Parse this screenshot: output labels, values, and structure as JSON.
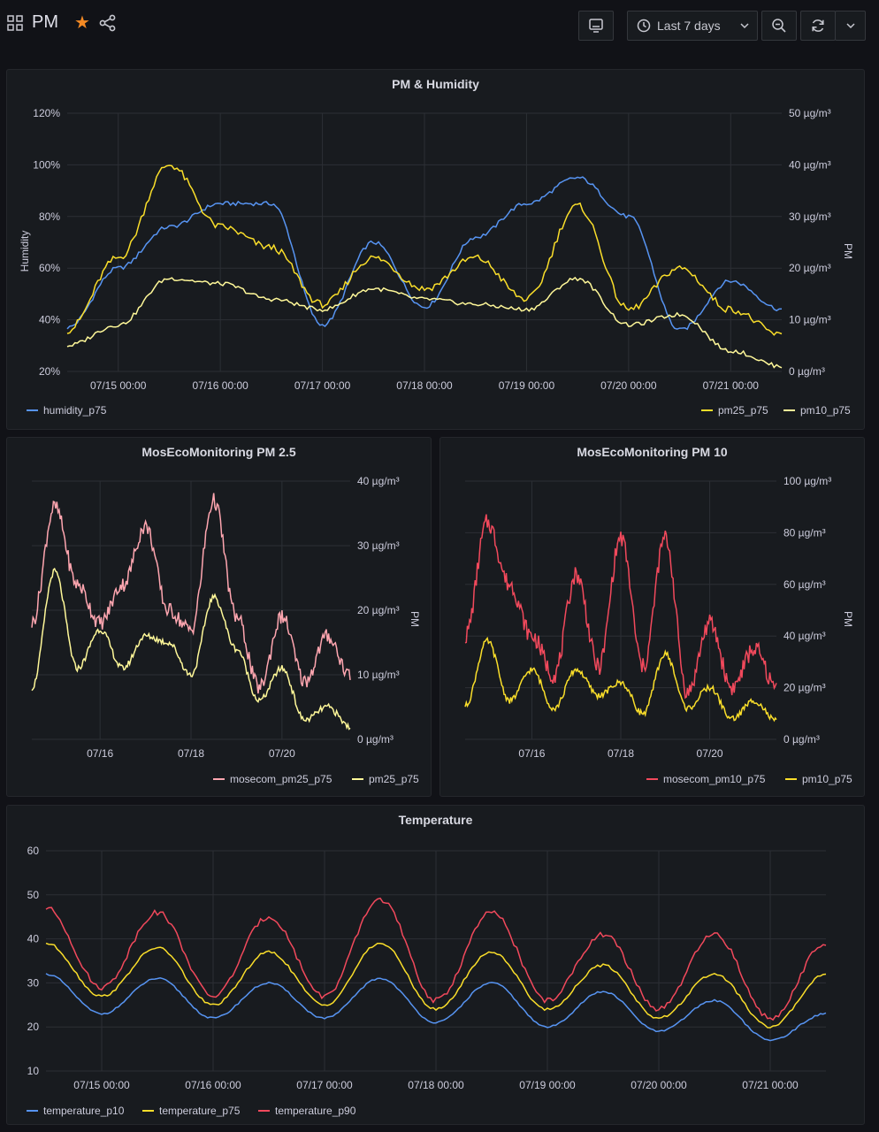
{
  "header": {
    "title": "PM",
    "time_range": "Last 7 days"
  },
  "colors": {
    "blue": "#5794f2",
    "yellow": "#fade2a",
    "light_yellow": "#fff899",
    "pink": "#ffa6b0",
    "red": "#f2495c",
    "star": "#f58a24"
  },
  "icons": [
    "apps-icon",
    "star-icon",
    "share-icon",
    "tv-icon",
    "clock-icon",
    "chevron-down-icon",
    "zoom-out-icon",
    "refresh-icon"
  ],
  "panels": {
    "pm_humidity": {
      "title": "PM & Humidity",
      "y_left_label": "Humidity",
      "y_right_label": "PM",
      "y_left_ticks": [
        "120%",
        "100%",
        "80%",
        "60%",
        "40%",
        "20%"
      ],
      "y_right_ticks": [
        "50 µg/m³",
        "40 µg/m³",
        "30 µg/m³",
        "20 µg/m³",
        "10 µg/m³",
        "0 µg/m³"
      ],
      "x_ticks": [
        "07/15 00:00",
        "07/16 00:00",
        "07/17 00:00",
        "07/18 00:00",
        "07/19 00:00",
        "07/20 00:00",
        "07/21 00:00"
      ],
      "legend_left": "humidity_p75",
      "legend_right_1": "pm25_p75",
      "legend_right_2": "pm10_p75"
    },
    "pm25": {
      "title": "MosEcoMonitoring PM 2.5",
      "y_right_label": "PM",
      "y_ticks": [
        "40 µg/m³",
        "30 µg/m³",
        "20 µg/m³",
        "10 µg/m³",
        "0 µg/m³"
      ],
      "x_ticks": [
        "07/16",
        "07/18",
        "07/20"
      ],
      "legend_1": "mosecom_pm25_p75",
      "legend_2": "pm25_p75"
    },
    "pm10": {
      "title": "MosEcoMonitoring PM 10",
      "y_right_label": "PM",
      "y_ticks": [
        "100 µg/m³",
        "80 µg/m³",
        "60 µg/m³",
        "40 µg/m³",
        "20 µg/m³",
        "0 µg/m³"
      ],
      "x_ticks": [
        "07/16",
        "07/18",
        "07/20"
      ],
      "legend_1": "mosecom_pm10_p75",
      "legend_2": "pm10_p75"
    },
    "temperature": {
      "title": "Temperature",
      "y_ticks": [
        "60",
        "50",
        "40",
        "30",
        "20",
        "10"
      ],
      "x_ticks": [
        "07/15 00:00",
        "07/16 00:00",
        "07/17 00:00",
        "07/18 00:00",
        "07/19 00:00",
        "07/20 00:00",
        "07/21 00:00"
      ],
      "legend_1": "temperature_p10",
      "legend_2": "temperature_p75",
      "legend_3": "temperature_p90"
    }
  },
  "chart_data": [
    {
      "type": "line",
      "title": "PM & Humidity",
      "x": [
        "07/14 12:00",
        "07/15 00:00",
        "07/15 12:00",
        "07/16 00:00",
        "07/16 12:00",
        "07/17 00:00",
        "07/17 12:00",
        "07/18 00:00",
        "07/18 12:00",
        "07/19 00:00",
        "07/19 12:00",
        "07/20 00:00",
        "07/20 12:00",
        "07/21 00:00",
        "07/21 12:00"
      ],
      "y_left_range": [
        20,
        120
      ],
      "y_right_range": [
        0,
        50
      ],
      "series": [
        {
          "name": "humidity_p75",
          "axis": "left",
          "values": [
            37,
            60,
            76,
            85,
            85,
            38,
            70,
            45,
            72,
            85,
            95,
            80,
            36,
            55,
            44
          ]
        },
        {
          "name": "pm25_p75",
          "axis": "right",
          "values": [
            8,
            22,
            40,
            28,
            24,
            13,
            22,
            16,
            22,
            14,
            32,
            12,
            20,
            12,
            7
          ]
        },
        {
          "name": "pm10_p75",
          "axis": "right",
          "values": [
            5,
            9,
            18,
            17,
            14,
            12,
            16,
            14,
            13,
            12,
            18,
            9,
            11,
            4,
            1
          ]
        }
      ]
    },
    {
      "type": "line",
      "title": "MosEcoMonitoring PM 2.5",
      "x": [
        "07/14 12:00",
        "07/15 00:00",
        "07/15 12:00",
        "07/16 00:00",
        "07/16 12:00",
        "07/17 00:00",
        "07/17 12:00",
        "07/18 00:00",
        "07/18 12:00",
        "07/19 00:00",
        "07/19 12:00",
        "07/20 00:00",
        "07/20 12:00",
        "07/21 00:00",
        "07/21 12:00"
      ],
      "y_range": [
        0,
        40
      ],
      "series": [
        {
          "name": "mosecom_pm25_p75",
          "values": [
            18,
            36,
            24,
            18,
            24,
            33,
            20,
            17,
            37,
            19,
            8,
            19,
            9,
            16,
            10
          ]
        },
        {
          "name": "pm25_p75",
          "values": [
            8,
            26,
            11,
            17,
            11,
            16,
            15,
            10,
            22,
            14,
            6,
            11,
            3,
            5,
            2
          ]
        }
      ]
    },
    {
      "type": "line",
      "title": "MosEcoMonitoring PM 10",
      "x": [
        "07/14 12:00",
        "07/15 00:00",
        "07/15 12:00",
        "07/16 00:00",
        "07/16 12:00",
        "07/17 00:00",
        "07/17 12:00",
        "07/18 00:00",
        "07/18 12:00",
        "07/19 00:00",
        "07/19 12:00",
        "07/20 00:00",
        "07/20 12:00",
        "07/21 00:00",
        "07/21 12:00"
      ],
      "y_range": [
        0,
        100
      ],
      "series": [
        {
          "name": "mosecom_pm10_p75",
          "values": [
            40,
            84,
            60,
            40,
            25,
            64,
            28,
            78,
            28,
            78,
            18,
            45,
            20,
            35,
            20
          ]
        },
        {
          "name": "pm10_p75",
          "values": [
            13,
            38,
            15,
            27,
            12,
            27,
            17,
            22,
            10,
            33,
            12,
            20,
            8,
            15,
            7
          ]
        }
      ]
    },
    {
      "type": "line",
      "title": "Temperature",
      "x": [
        "07/14 12:00",
        "07/15 00:00",
        "07/15 12:00",
        "07/16 00:00",
        "07/16 12:00",
        "07/17 00:00",
        "07/17 12:00",
        "07/18 00:00",
        "07/18 12:00",
        "07/19 00:00",
        "07/19 12:00",
        "07/20 00:00",
        "07/20 12:00",
        "07/21 00:00",
        "07/21 12:00"
      ],
      "y_range": [
        10,
        60
      ],
      "series": [
        {
          "name": "temperature_p10",
          "values": [
            32,
            23,
            31,
            22,
            30,
            22,
            31,
            21,
            30,
            20,
            28,
            19,
            26,
            17,
            23
          ]
        },
        {
          "name": "temperature_p75",
          "values": [
            39,
            27,
            38,
            25,
            37,
            25,
            39,
            24,
            37,
            24,
            34,
            22,
            32,
            20,
            32
          ]
        },
        {
          "name": "temperature_p90",
          "values": [
            47,
            29,
            46,
            27,
            45,
            27,
            49,
            26,
            46,
            26,
            41,
            24,
            41,
            22,
            39
          ]
        }
      ]
    }
  ]
}
